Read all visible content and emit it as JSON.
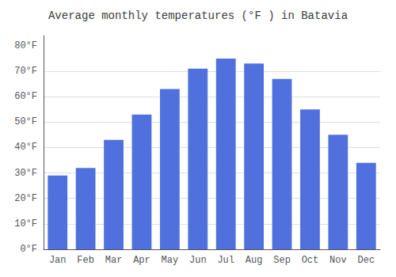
{
  "chart_data": {
    "type": "bar",
    "title": "Average monthly temperatures (°F ) in Batavia",
    "categories": [
      "Jan",
      "Feb",
      "Mar",
      "Apr",
      "May",
      "Jun",
      "Jul",
      "Aug",
      "Sep",
      "Oct",
      "Nov",
      "Dec"
    ],
    "values": [
      29,
      32,
      43,
      53,
      63,
      71,
      75,
      73,
      67,
      55,
      45,
      34
    ],
    "ylim": [
      0,
      84
    ],
    "yticks": [
      {
        "value": 0,
        "label": "0°F"
      },
      {
        "value": 10,
        "label": "10°F"
      },
      {
        "value": 20,
        "label": "20°F"
      },
      {
        "value": 30,
        "label": "30°F"
      },
      {
        "value": 40,
        "label": "40°F"
      },
      {
        "value": 50,
        "label": "50°F"
      },
      {
        "value": 60,
        "label": "60°F"
      },
      {
        "value": 70,
        "label": "70°F"
      },
      {
        "value": 80,
        "label": "80°F"
      }
    ],
    "grid": true
  }
}
